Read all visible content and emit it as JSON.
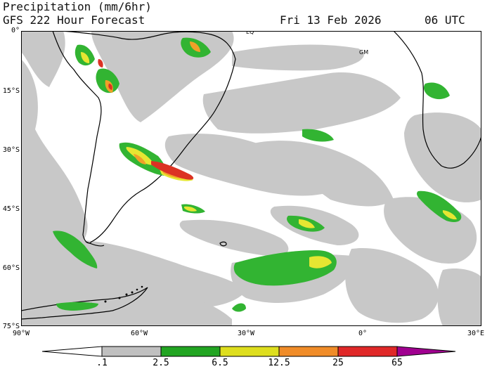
{
  "title": {
    "line1": "Precipitation (mm/6hr)",
    "line2": "GFS 222 Hour Forecast",
    "date": "Fri 13 Feb 2026",
    "time": "06 UTC"
  },
  "axes": {
    "lat_labels": [
      "0°",
      "15°S",
      "30°S",
      "45°S",
      "60°S",
      "75°S"
    ],
    "lon_labels": [
      "90°W",
      "60°W",
      "30°W",
      "0°",
      "30°E"
    ],
    "lon_range": [
      -90,
      30
    ],
    "lat_range": [
      0,
      -75
    ]
  },
  "map_labels": {
    "equator": "EQ",
    "greenwich": "GM"
  },
  "legend": {
    "thresholds": [
      ".1",
      "2.5",
      "6.5",
      "12.5",
      "25",
      "65"
    ],
    "colors": [
      "#ffffff",
      "#c0c0c0",
      "#22a522",
      "#dede1e",
      "#f08c28",
      "#e02828",
      "#a00090"
    ]
  },
  "colors": {
    "grey": "#c8c8c8",
    "green": "#32b432",
    "yellow": "#e6e632",
    "orange": "#f0a028",
    "red": "#dc3223",
    "land_outline": "#000000"
  }
}
